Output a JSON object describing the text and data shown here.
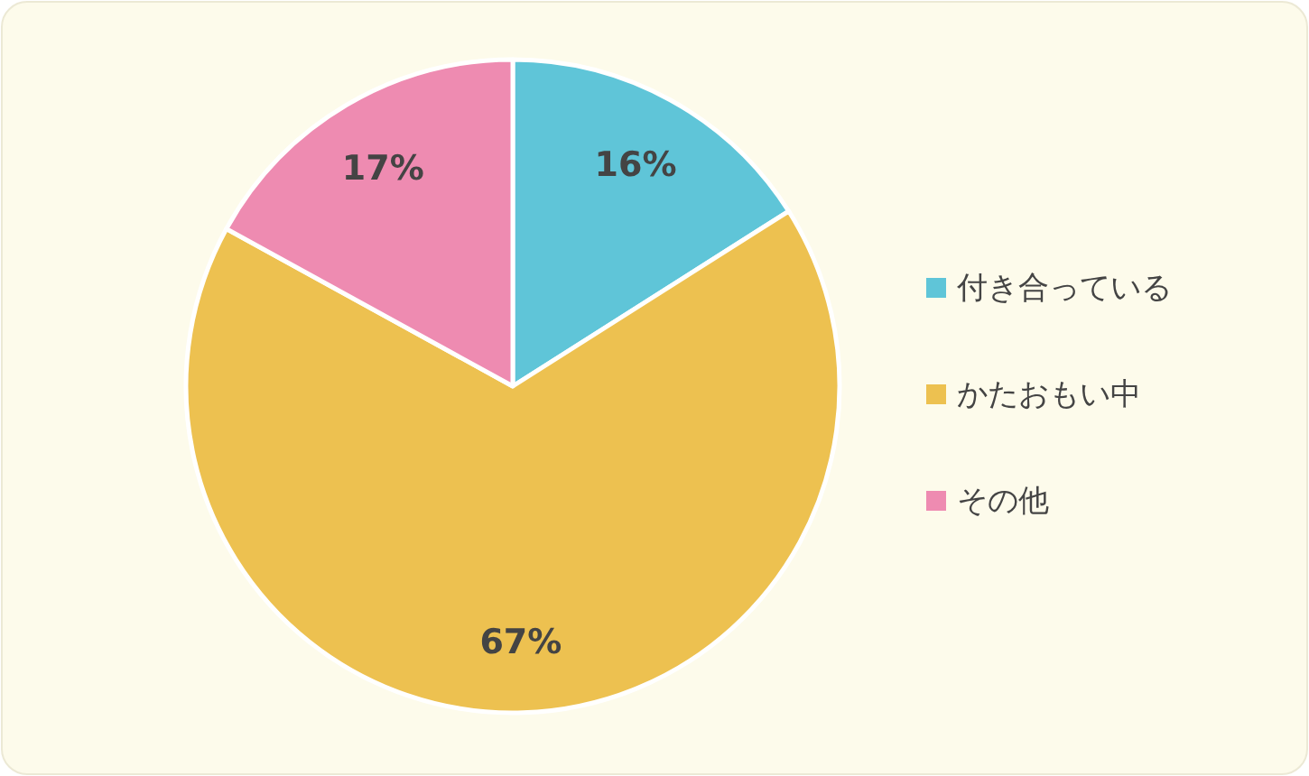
{
  "chart_data": {
    "type": "pie",
    "categories": [
      "付き合っている",
      "かたおもい中",
      "その他"
    ],
    "values": [
      16,
      67,
      17
    ],
    "value_labels": [
      "16%",
      "67%",
      "17%"
    ],
    "colors": [
      "#5fc5d8",
      "#edc150",
      "#ee8bb1"
    ],
    "legend": "right"
  }
}
